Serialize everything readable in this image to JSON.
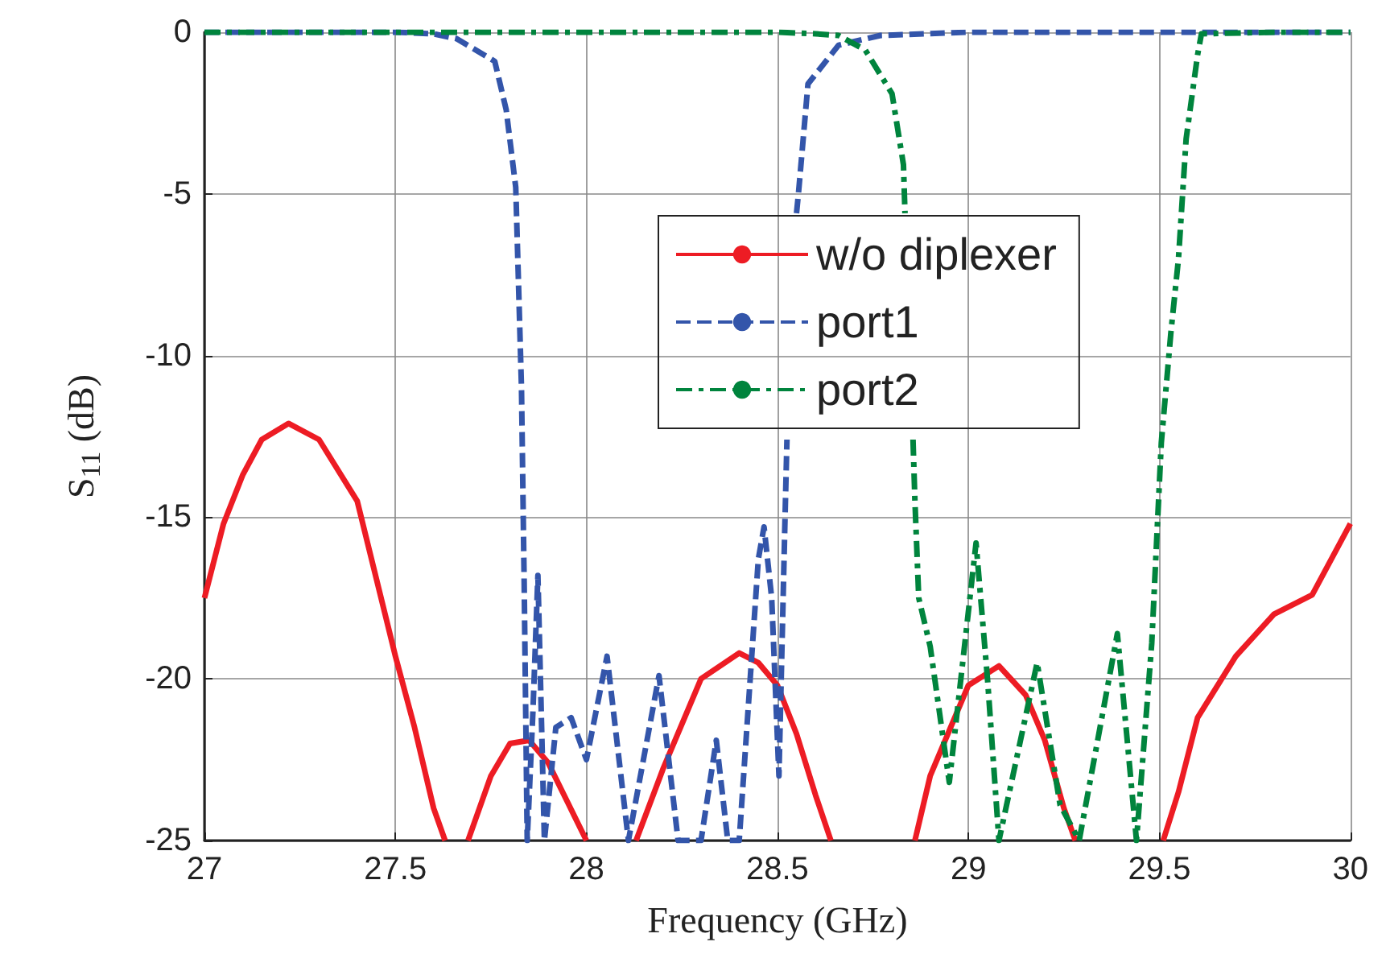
{
  "chart_data": {
    "type": "line",
    "xlabel": "Frequency (GHz)",
    "ylabel": "S$_{11}$ (dB)",
    "xlim": [
      27,
      30
    ],
    "ylim": [
      -25,
      0
    ],
    "xticks": [
      27,
      27.5,
      28,
      28.5,
      29,
      29.5,
      30
    ],
    "yticks": [
      -25,
      -20,
      -15,
      -10,
      -5,
      0
    ],
    "grid": true,
    "legend": "top right",
    "series": [
      {
        "name": "w/o diplexer",
        "color": "#ed1c24",
        "line_style": "solid",
        "x": [
          27,
          27.05,
          27.1,
          27.15,
          27.22,
          27.3,
          27.4,
          27.5,
          27.55,
          27.6,
          27.63,
          27.66,
          27.69,
          27.75,
          27.8,
          27.85,
          27.9,
          27.95,
          28,
          28.06,
          28.13,
          28.2,
          28.3,
          28.4,
          28.45,
          28.5,
          28.55,
          28.6,
          28.64,
          28.75,
          28.86,
          28.9,
          29,
          29.08,
          29.15,
          29.2,
          29.25,
          29.28,
          29.4,
          29.51,
          29.55,
          29.6,
          29.7,
          29.8,
          29.9,
          30
        ],
        "values": [
          -17.5,
          -15.2,
          -13.7,
          -12.6,
          -12.1,
          -12.6,
          -14.5,
          -19.3,
          -21.5,
          -24,
          -25,
          null,
          -25,
          -23,
          -22,
          -21.9,
          -22.6,
          -23.8,
          -25,
          null,
          -25,
          -22.8,
          -20,
          -19.2,
          -19.5,
          -20.2,
          -21.7,
          -23.6,
          -25,
          null,
          -25,
          -23,
          -20.2,
          -19.6,
          -20.5,
          -21.9,
          -24,
          -25,
          null,
          -25,
          -23.5,
          -21.2,
          -19.3,
          -18,
          -17.4,
          -15.2
        ]
      },
      {
        "name": "port1",
        "color": "#3355aa",
        "line_style": "dashed",
        "x": [
          27,
          27.5,
          27.6,
          27.66,
          27.76,
          27.79,
          27.815,
          27.83,
          27.837,
          27.845,
          27.86,
          27.873,
          27.89,
          27.92,
          27.96,
          28,
          28.054,
          28.11,
          28.19,
          28.24,
          28.3,
          28.34,
          28.37,
          28.4,
          28.45,
          28.465,
          28.485,
          28.504,
          28.52,
          28.525,
          28.535,
          28.55,
          28.555,
          28.58,
          28.66,
          28.77,
          29,
          29.5,
          30
        ],
        "values": [
          0,
          0,
          -0.05,
          -0.2,
          -0.9,
          -2.4,
          -4.8,
          -11,
          -17,
          -25,
          -21,
          -16.8,
          -25,
          -21.5,
          -21.2,
          -22.5,
          -19.3,
          -25,
          -19.9,
          -25,
          -25,
          -21.9,
          -25,
          -25,
          -16.3,
          -15.3,
          -17.5,
          -23,
          -15,
          -12.6,
          null,
          -5.6,
          -5,
          -1.6,
          -0.4,
          -0.1,
          0,
          0,
          0
        ]
      },
      {
        "name": "port2",
        "color": "#00843d",
        "line_style": "dashdot",
        "x": [
          27,
          27.5,
          28,
          28.5,
          28.6,
          28.66,
          28.73,
          28.8,
          28.83,
          28.834,
          28.845,
          28.855,
          28.86,
          28.87,
          28.9,
          28.95,
          29.02,
          29.05,
          29.08,
          29.18,
          29.24,
          29.29,
          29.39,
          29.44,
          29.48,
          29.505,
          29.53,
          29.55,
          29.57,
          29.6,
          29.61,
          29.8,
          30
        ],
        "values": [
          0,
          0,
          0,
          0,
          -0.05,
          -0.1,
          -0.55,
          -1.9,
          -4.1,
          -5.6,
          null,
          -12.6,
          -14.5,
          -17.5,
          -19,
          -23.2,
          -15.8,
          -20,
          -25,
          -19.5,
          -23.9,
          -25,
          -18.6,
          -25,
          -18.9,
          -12.7,
          -9.3,
          -7,
          -3.3,
          -0.7,
          -0.05,
          0,
          0
        ]
      }
    ]
  }
}
